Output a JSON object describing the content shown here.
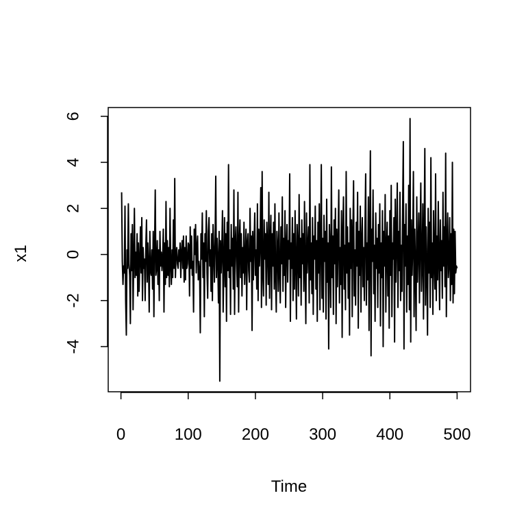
{
  "chart_data": {
    "type": "line",
    "xlabel": "Time",
    "ylabel": "x1",
    "color": "#000000",
    "grid": false,
    "xlim": [
      -18.96,
      519.96
    ],
    "ylim": [
      -5.96,
      6.38
    ],
    "xticks": [
      0,
      100,
      200,
      300,
      400,
      500
    ],
    "yticks": [
      -4,
      -2,
      0,
      2,
      4,
      6
    ],
    "x": [
      1,
      2,
      3,
      4,
      5,
      6,
      7,
      8,
      9,
      10,
      11,
      12,
      13,
      14,
      15,
      16,
      17,
      18,
      19,
      20,
      21,
      22,
      23,
      24,
      25,
      26,
      27,
      28,
      29,
      30,
      31,
      32,
      33,
      34,
      35,
      36,
      37,
      38,
      39,
      40,
      41,
      42,
      43,
      44,
      45,
      46,
      47,
      48,
      49,
      50,
      51,
      52,
      53,
      54,
      55,
      56,
      57,
      58,
      59,
      60,
      61,
      62,
      63,
      64,
      65,
      66,
      67,
      68,
      69,
      70,
      71,
      72,
      73,
      74,
      75,
      76,
      77,
      78,
      79,
      80,
      81,
      82,
      83,
      84,
      85,
      86,
      87,
      88,
      89,
      90,
      91,
      92,
      93,
      94,
      95,
      96,
      97,
      98,
      99,
      100,
      101,
      102,
      103,
      104,
      105,
      106,
      107,
      108,
      109,
      110,
      111,
      112,
      113,
      114,
      115,
      116,
      117,
      118,
      119,
      120,
      121,
      122,
      123,
      124,
      125,
      126,
      127,
      128,
      129,
      130,
      131,
      132,
      133,
      134,
      135,
      136,
      137,
      138,
      139,
      140,
      141,
      142,
      143,
      144,
      145,
      146,
      147,
      148,
      149,
      150,
      151,
      152,
      153,
      154,
      155,
      156,
      157,
      158,
      159,
      160,
      161,
      162,
      163,
      164,
      165,
      166,
      167,
      168,
      169,
      170,
      171,
      172,
      173,
      174,
      175,
      176,
      177,
      178,
      179,
      180,
      181,
      182,
      183,
      184,
      185,
      186,
      187,
      188,
      189,
      190,
      191,
      192,
      193,
      194,
      195,
      196,
      197,
      198,
      199,
      200,
      201,
      202,
      203,
      204,
      205,
      206,
      207,
      208,
      209,
      210,
      211,
      212,
      213,
      214,
      215,
      216,
      217,
      218,
      219,
      220,
      221,
      222,
      223,
      224,
      225,
      226,
      227,
      228,
      229,
      230,
      231,
      232,
      233,
      234,
      235,
      236,
      237,
      238,
      239,
      240,
      241,
      242,
      243,
      244,
      245,
      246,
      247,
      248,
      249,
      250,
      251,
      252,
      253,
      254,
      255,
      256,
      257,
      258,
      259,
      260,
      261,
      262,
      263,
      264,
      265,
      266,
      267,
      268,
      269,
      270,
      271,
      272,
      273,
      274,
      275,
      276,
      277,
      278,
      279,
      280,
      281,
      282,
      283,
      284,
      285,
      286,
      287,
      288,
      289,
      290,
      291,
      292,
      293,
      294,
      295,
      296,
      297,
      298,
      299,
      300,
      301,
      302,
      303,
      304,
      305,
      306,
      307,
      308,
      309,
      310,
      311,
      312,
      313,
      314,
      315,
      316,
      317,
      318,
      319,
      320,
      321,
      322,
      323,
      324,
      325,
      326,
      327,
      328,
      329,
      330,
      331,
      332,
      333,
      334,
      335,
      336,
      337,
      338,
      339,
      340,
      341,
      342,
      343,
      344,
      345,
      346,
      347,
      348,
      349,
      350,
      351,
      352,
      353,
      354,
      355,
      356,
      357,
      358,
      359,
      360,
      361,
      362,
      363,
      364,
      365,
      366,
      367,
      368,
      369,
      370,
      371,
      372,
      373,
      374,
      375,
      376,
      377,
      378,
      379,
      380,
      381,
      382,
      383,
      384,
      385,
      386,
      387,
      388,
      389,
      390,
      391,
      392,
      393,
      394,
      395,
      396,
      397,
      398,
      399,
      400,
      401,
      402,
      403,
      404,
      405,
      406,
      407,
      408,
      409,
      410,
      411,
      412,
      413,
      414,
      415,
      416,
      417,
      418,
      419,
      420,
      421,
      422,
      423,
      424,
      425,
      426,
      427,
      428,
      429,
      430,
      431,
      432,
      433,
      434,
      435,
      436,
      437,
      438,
      439,
      440,
      441,
      442,
      443,
      444,
      445,
      446,
      447,
      448,
      449,
      450,
      451,
      452,
      453,
      454,
      455,
      456,
      457,
      458,
      459,
      460,
      461,
      462,
      463,
      464,
      465,
      466,
      467,
      468,
      469,
      470,
      471,
      472,
      473,
      474,
      475,
      476,
      477,
      478,
      479,
      480,
      481,
      482,
      483,
      484,
      485,
      486,
      487,
      488,
      489,
      490,
      491,
      492,
      493,
      494,
      495,
      496,
      497,
      498,
      499,
      500
    ],
    "values": [
      2.7,
      -0.3,
      -1.3,
      -0.5,
      -0.8,
      2.1,
      -2.0,
      -3.5,
      0.2,
      -0.6,
      2.2,
      -0.4,
      -0.9,
      -3.0,
      0.9,
      -0.7,
      1.3,
      -2.4,
      -0.2,
      2.0,
      -1.0,
      0.1,
      -0.9,
      0.9,
      -1.8,
      0.5,
      -1.6,
      -0.3,
      1.2,
      -0.8,
      1.6,
      -2.0,
      0.3,
      -0.6,
      -0.2,
      -2.0,
      0.4,
      1.5,
      -1.2,
      0.5,
      -0.4,
      -2.5,
      1.0,
      -0.7,
      -0.9,
      0.2,
      -1.5,
      1.0,
      -2.7,
      0.3,
      2.8,
      -0.9,
      -0.6,
      0.6,
      -1.3,
      0.2,
      -2.0,
      1.0,
      -0.5,
      0.1,
      -0.7,
      -0.2,
      1.1,
      -2.5,
      0.5,
      -1.3,
      2.3,
      -1.0,
      0.6,
      -0.9,
      0.3,
      -1.4,
      2.0,
      -0.5,
      -1.3,
      0.2,
      -1.0,
      1.5,
      -0.6,
      3.3,
      -1.0,
      0.0,
      0.3,
      -0.4,
      -0.6,
      0.2,
      -0.3,
      0.5,
      -1.0,
      0.1,
      0.6,
      -0.6,
      0.8,
      -1.2,
      0.3,
      -1.1,
      0.8,
      -0.6,
      -0.4,
      0.5,
      0.4,
      -1.8,
      1.2,
      -0.6,
      0.8,
      -0.9,
      -0.3,
      -2.5,
      1.1,
      0.0,
      1.3,
      -0.8,
      0.3,
      0.8,
      -1.1,
      -0.3,
      -0.7,
      -3.4,
      0.9,
      -0.2,
      1.8,
      -1.0,
      0.5,
      -2.7,
      0.9,
      -0.3,
      1.9,
      -0.8,
      -1.9,
      1.0,
      1.6,
      -0.5,
      0.2,
      -1.6,
      0.9,
      -2.0,
      1.3,
      0.2,
      -1.2,
      0.5,
      3.4,
      -1.0,
      0.7,
      -0.2,
      -2.1,
      1.0,
      -5.5,
      0.6,
      -0.8,
      0.2,
      1.9,
      -2.5,
      -0.5,
      1.6,
      -1.4,
      0.9,
      -2.9,
      1.4,
      -0.7,
      3.9,
      -1.0,
      0.2,
      -2.6,
      1.3,
      -0.5,
      0.7,
      -1.5,
      2.8,
      -2.6,
      0.5,
      1.2,
      -0.3,
      -1.4,
      2.7,
      -2.5,
      0.4,
      1.5,
      -1.0,
      0.9,
      -1.8,
      0.3,
      -0.8,
      1.4,
      -1.3,
      -0.2,
      1.1,
      -2.4,
      0.5,
      0.9,
      -0.7,
      -1.2,
      2.0,
      -0.3,
      0.8,
      -3.3,
      1.0,
      -1.1,
      0.5,
      1.8,
      -0.9,
      0.2,
      -1.5,
      2.2,
      -2.0,
      1.1,
      -0.5,
      0.6,
      2.9,
      -2.3,
      3.6,
      -0.8,
      -1.8,
      1.5,
      -0.2,
      0.9,
      -2.2,
      1.4,
      0.3,
      -1.3,
      2.7,
      -1.9,
      0.6,
      1.7,
      -2.4,
      0.9,
      -0.5,
      1.4,
      -1.5,
      2.2,
      -0.9,
      -2.5,
      1.0,
      0.3,
      -1.6,
      1.8,
      -0.7,
      -2.1,
      1.2,
      -0.4,
      2.5,
      -1.6,
      0.7,
      -0.9,
      1.9,
      -2.3,
      0.4,
      1.3,
      -1.2,
      0.6,
      -0.2,
      3.5,
      -2.9,
      0.5,
      -0.6,
      1.6,
      -2.0,
      0.9,
      -1.5,
      1.9,
      -0.3,
      -2.8,
      1.3,
      0.4,
      -1.8,
      2.6,
      -1.0,
      0.7,
      -2.2,
      1.5,
      -0.4,
      0.9,
      -1.6,
      2.3,
      -0.6,
      -3.0,
      1.8,
      -0.8,
      0.3,
      1.2,
      -2.1,
      3.9,
      -1.1,
      0.5,
      -1.7,
      1.6,
      -2.6,
      0.8,
      -0.2,
      2.1,
      -1.5,
      0.6,
      -2.9,
      1.4,
      -0.8,
      2.2,
      -2.4,
      0.4,
      3.9,
      -1.9,
      0.7,
      -2.5,
      1.7,
      -0.3,
      1.0,
      -2.8,
      2.4,
      -1.2,
      0.5,
      -4.1,
      1.3,
      0.2,
      -2.3,
      3.8,
      -1.0,
      0.8,
      -2.6,
      1.5,
      -0.4,
      2.0,
      -3.0,
      1.1,
      -1.4,
      0.6,
      2.8,
      -2.1,
      0.3,
      -1.3,
      1.9,
      -3.6,
      0.9,
      2.5,
      -1.5,
      0.4,
      -2.4,
      3.6,
      -0.8,
      1.2,
      -1.9,
      0.5,
      -3.5,
      2.0,
      -0.6,
      1.5,
      -2.7,
      0.9,
      3.2,
      -1.8,
      0.2,
      -2.2,
      1.4,
      -0.5,
      2.7,
      -3.2,
      1.0,
      -0.9,
      2.1,
      -2.5,
      0.6,
      1.6,
      -1.4,
      0.3,
      -2.0,
      1.2,
      3.5,
      -2.2,
      0.5,
      -1.1,
      2.5,
      -3.3,
      0.9,
      4.5,
      -4.4,
      1.1,
      -0.3,
      2.8,
      -1.7,
      0.4,
      -2.9,
      1.8,
      -0.6,
      0.7,
      -2.3,
      1.3,
      -0.8,
      2.2,
      -3.1,
      0.5,
      -1.0,
      1.9,
      -4.0,
      1.0,
      -0.5,
      2.6,
      -2.5,
      0.3,
      1.4,
      -1.8,
      0.8,
      -3.2,
      1.9,
      -0.9,
      3.0,
      -2.7,
      0.5,
      -0.2,
      1.6,
      -3.8,
      2.4,
      -1.2,
      0.6,
      3.1,
      -2.3,
      1.0,
      -0.7,
      2.7,
      -2.0,
      0.4,
      -1.6,
      2.0,
      4.9,
      -4.1,
      1.3,
      -0.5,
      2.2,
      -2.5,
      0.8,
      -1.3,
      3.0,
      -2.4,
      5.9,
      -3.8,
      1.5,
      -0.9,
      0.4,
      3.6,
      -2.7,
      1.1,
      -0.6,
      -3.3,
      2.5,
      -1.2,
      0.3,
      1.8,
      -2.1,
      0.7,
      3.1,
      -1.6,
      -0.4,
      2.2,
      -2.8,
      0.9,
      4.6,
      -2.2,
      1.2,
      -0.6,
      -3.5,
      2.0,
      -0.8,
      1.4,
      -2.3,
      4.2,
      -1.0,
      0.5,
      -2.6,
      1.9,
      -0.3,
      -1.5,
      3.5,
      -2.0,
      0.8,
      -1.1,
      2.3,
      -0.2,
      -2.4,
      1.5,
      -0.7,
      0.6,
      -1.9,
      2.7,
      -0.5,
      1.2,
      -1.4,
      4.4,
      -2.7,
      0.3,
      1.8,
      -1.0,
      -0.4,
      1.6,
      -2.0,
      0.9,
      -1.3,
      4.0,
      -2.1,
      1.1,
      -1.7,
      1.0,
      -0.8,
      -0.5,
      -0.6
    ]
  }
}
